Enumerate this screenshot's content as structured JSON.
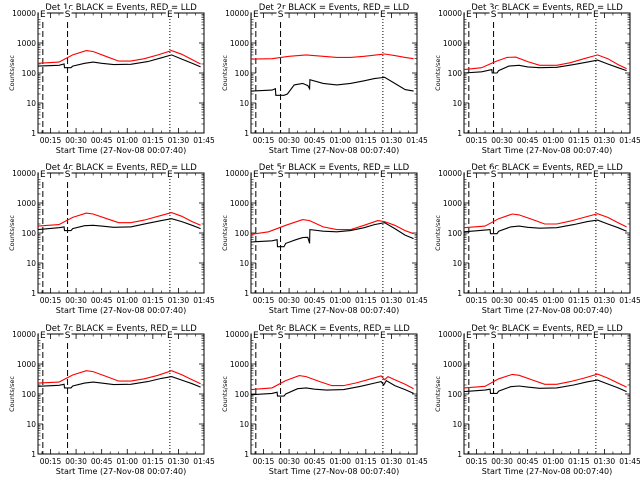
{
  "chart_data": {
    "type": "line",
    "layout": "3x3 grid",
    "panel_title_suffix": " BLACK = Events, RED = LLD",
    "ylabel": "Counts/sec",
    "xlabel": "Start Time (27-Nov-08 00:07:40)",
    "x_unit": "minutes since 00:00",
    "xlim": [
      7.67,
      105
    ],
    "ylim": [
      1,
      10000
    ],
    "yscale": "log",
    "y_tick_labels": [
      "1",
      "10",
      "100",
      "1000",
      "10000"
    ],
    "y_tick_values": [
      1,
      10,
      100,
      1000,
      10000
    ],
    "x_tick_labels": [
      "00:15",
      "00:30",
      "00:45",
      "01:00",
      "01:15",
      "01:30",
      "01:45"
    ],
    "x_tick_values": [
      15,
      30,
      45,
      60,
      75,
      90,
      105
    ],
    "markers": [
      {
        "label": "E",
        "x": 10.5,
        "style": "dashed"
      },
      {
        "label": "S",
        "x": 25.0,
        "style": "dashed"
      },
      {
        "label": "E",
        "x": 85.0,
        "style": "dotted"
      }
    ],
    "series_colors": {
      "events": "#000000",
      "lld": "#ff0000"
    },
    "panels": [
      {
        "detector": "Det 1c",
        "events": [
          [
            7.7,
            170
          ],
          [
            20,
            180
          ],
          [
            23,
            200
          ],
          [
            23.2,
            150
          ],
          [
            27,
            150
          ],
          [
            28,
            170
          ],
          [
            35,
            210
          ],
          [
            40,
            230
          ],
          [
            45,
            210
          ],
          [
            52,
            190
          ],
          [
            62,
            195
          ],
          [
            72,
            240
          ],
          [
            80,
            320
          ],
          [
            86,
            400
          ],
          [
            92,
            290
          ],
          [
            98,
            210
          ],
          [
            103,
            160
          ]
        ],
        "lld": [
          [
            7.7,
            210
          ],
          [
            20,
            230
          ],
          [
            28,
            400
          ],
          [
            36,
            560
          ],
          [
            40,
            520
          ],
          [
            48,
            350
          ],
          [
            55,
            250
          ],
          [
            62,
            250
          ],
          [
            70,
            300
          ],
          [
            78,
            400
          ],
          [
            86,
            560
          ],
          [
            92,
            420
          ],
          [
            98,
            280
          ],
          [
            103,
            200
          ]
        ]
      },
      {
        "detector": "Det 2r",
        "events": [
          [
            7.7,
            25
          ],
          [
            20,
            27
          ],
          [
            22,
            30
          ],
          [
            22.2,
            18
          ],
          [
            27,
            18
          ],
          [
            29,
            20
          ],
          [
            33,
            40
          ],
          [
            38,
            45
          ],
          [
            41,
            38
          ],
          [
            42,
            30
          ],
          [
            42.2,
            60
          ],
          [
            50,
            45
          ],
          [
            58,
            40
          ],
          [
            66,
            45
          ],
          [
            74,
            55
          ],
          [
            80,
            65
          ],
          [
            86,
            72
          ],
          [
            92,
            45
          ],
          [
            98,
            28
          ],
          [
            103,
            25
          ]
        ],
        "lld": [
          [
            7.7,
            290
          ],
          [
            20,
            300
          ],
          [
            30,
            360
          ],
          [
            40,
            400
          ],
          [
            50,
            360
          ],
          [
            58,
            330
          ],
          [
            66,
            330
          ],
          [
            74,
            360
          ],
          [
            86,
            430
          ],
          [
            92,
            380
          ],
          [
            98,
            330
          ],
          [
            103,
            300
          ]
        ]
      },
      {
        "detector": "Det 3c",
        "events": [
          [
            7.7,
            100
          ],
          [
            18,
            110
          ],
          [
            24,
            130
          ],
          [
            24.2,
            100
          ],
          [
            27,
            100
          ],
          [
            28,
            120
          ],
          [
            34,
            170
          ],
          [
            40,
            180
          ],
          [
            45,
            160
          ],
          [
            52,
            150
          ],
          [
            62,
            155
          ],
          [
            72,
            190
          ],
          [
            80,
            230
          ],
          [
            86,
            270
          ],
          [
            92,
            200
          ],
          [
            98,
            150
          ],
          [
            103,
            120
          ]
        ],
        "lld": [
          [
            7.7,
            130
          ],
          [
            18,
            150
          ],
          [
            26,
            240
          ],
          [
            33,
            330
          ],
          [
            38,
            340
          ],
          [
            45,
            240
          ],
          [
            52,
            180
          ],
          [
            62,
            180
          ],
          [
            70,
            220
          ],
          [
            78,
            300
          ],
          [
            86,
            400
          ],
          [
            92,
            300
          ],
          [
            98,
            190
          ],
          [
            103,
            140
          ]
        ]
      },
      {
        "detector": "Det 4c",
        "events": [
          [
            7.7,
            130
          ],
          [
            20,
            150
          ],
          [
            23,
            160
          ],
          [
            23.2,
            120
          ],
          [
            27,
            120
          ],
          [
            28,
            140
          ],
          [
            35,
            175
          ],
          [
            40,
            180
          ],
          [
            45,
            170
          ],
          [
            52,
            155
          ],
          [
            62,
            160
          ],
          [
            72,
            210
          ],
          [
            80,
            260
          ],
          [
            86,
            300
          ],
          [
            92,
            240
          ],
          [
            98,
            180
          ],
          [
            103,
            140
          ]
        ],
        "lld": [
          [
            7.7,
            170
          ],
          [
            20,
            190
          ],
          [
            28,
            330
          ],
          [
            36,
            460
          ],
          [
            40,
            430
          ],
          [
            48,
            300
          ],
          [
            55,
            220
          ],
          [
            62,
            220
          ],
          [
            70,
            270
          ],
          [
            78,
            360
          ],
          [
            86,
            480
          ],
          [
            92,
            360
          ],
          [
            98,
            240
          ],
          [
            103,
            180
          ]
        ]
      },
      {
        "detector": "Det 5r",
        "events": [
          [
            7.7,
            50
          ],
          [
            20,
            55
          ],
          [
            23,
            60
          ],
          [
            23.2,
            35
          ],
          [
            27,
            35
          ],
          [
            28,
            45
          ],
          [
            34,
            60
          ],
          [
            38,
            70
          ],
          [
            41,
            72
          ],
          [
            42,
            45
          ],
          [
            42.2,
            130
          ],
          [
            50,
            115
          ],
          [
            58,
            110
          ],
          [
            66,
            120
          ],
          [
            74,
            150
          ],
          [
            80,
            190
          ],
          [
            86,
            220
          ],
          [
            92,
            140
          ],
          [
            98,
            85
          ],
          [
            103,
            65
          ]
        ],
        "lld": [
          [
            7.7,
            90
          ],
          [
            18,
            110
          ],
          [
            28,
            180
          ],
          [
            38,
            280
          ],
          [
            42,
            260
          ],
          [
            50,
            160
          ],
          [
            58,
            130
          ],
          [
            66,
            130
          ],
          [
            74,
            180
          ],
          [
            82,
            260
          ],
          [
            86,
            240
          ],
          [
            92,
            180
          ],
          [
            98,
            120
          ],
          [
            103,
            95
          ]
        ]
      },
      {
        "detector": "Det 6c",
        "events": [
          [
            7.7,
            110
          ],
          [
            20,
            125
          ],
          [
            23,
            130
          ],
          [
            23.2,
            95
          ],
          [
            27,
            95
          ],
          [
            28,
            115
          ],
          [
            35,
            160
          ],
          [
            40,
            170
          ],
          [
            45,
            155
          ],
          [
            52,
            145
          ],
          [
            62,
            150
          ],
          [
            72,
            190
          ],
          [
            80,
            240
          ],
          [
            86,
            270
          ],
          [
            92,
            200
          ],
          [
            98,
            150
          ],
          [
            103,
            115
          ]
        ],
        "lld": [
          [
            7.7,
            150
          ],
          [
            20,
            170
          ],
          [
            28,
            300
          ],
          [
            36,
            430
          ],
          [
            40,
            400
          ],
          [
            48,
            280
          ],
          [
            55,
            200
          ],
          [
            62,
            200
          ],
          [
            70,
            250
          ],
          [
            78,
            330
          ],
          [
            86,
            440
          ],
          [
            92,
            330
          ],
          [
            98,
            220
          ],
          [
            103,
            160
          ]
        ]
      },
      {
        "detector": "Det 7c",
        "events": [
          [
            7.7,
            180
          ],
          [
            20,
            195
          ],
          [
            23,
            210
          ],
          [
            23.2,
            160
          ],
          [
            27,
            160
          ],
          [
            28,
            185
          ],
          [
            35,
            230
          ],
          [
            40,
            250
          ],
          [
            45,
            230
          ],
          [
            52,
            205
          ],
          [
            62,
            210
          ],
          [
            72,
            260
          ],
          [
            80,
            330
          ],
          [
            86,
            380
          ],
          [
            92,
            290
          ],
          [
            98,
            220
          ],
          [
            103,
            170
          ]
        ],
        "lld": [
          [
            7.7,
            230
          ],
          [
            20,
            250
          ],
          [
            28,
            430
          ],
          [
            36,
            600
          ],
          [
            40,
            560
          ],
          [
            48,
            380
          ],
          [
            55,
            270
          ],
          [
            62,
            270
          ],
          [
            70,
            320
          ],
          [
            78,
            420
          ],
          [
            86,
            600
          ],
          [
            92,
            440
          ],
          [
            98,
            300
          ],
          [
            103,
            220
          ]
        ]
      },
      {
        "detector": "Det 8c",
        "events": [
          [
            7.7,
            95
          ],
          [
            20,
            105
          ],
          [
            23,
            115
          ],
          [
            23.2,
            85
          ],
          [
            27,
            85
          ],
          [
            28,
            100
          ],
          [
            35,
            150
          ],
          [
            40,
            160
          ],
          [
            45,
            145
          ],
          [
            52,
            135
          ],
          [
            62,
            140
          ],
          [
            72,
            180
          ],
          [
            80,
            230
          ],
          [
            84,
            260
          ],
          [
            85.5,
            200
          ],
          [
            87,
            280
          ],
          [
            92,
            190
          ],
          [
            98,
            140
          ],
          [
            103,
            105
          ]
        ],
        "lld": [
          [
            7.7,
            140
          ],
          [
            20,
            160
          ],
          [
            28,
            280
          ],
          [
            36,
            410
          ],
          [
            40,
            380
          ],
          [
            48,
            260
          ],
          [
            55,
            190
          ],
          [
            62,
            190
          ],
          [
            70,
            240
          ],
          [
            78,
            320
          ],
          [
            84,
            400
          ],
          [
            86,
            300
          ],
          [
            88,
            380
          ],
          [
            92,
            300
          ],
          [
            98,
            210
          ],
          [
            103,
            150
          ]
        ]
      },
      {
        "detector": "Det 9c",
        "events": [
          [
            7.7,
            120
          ],
          [
            20,
            135
          ],
          [
            23,
            145
          ],
          [
            23.2,
            105
          ],
          [
            27,
            105
          ],
          [
            28,
            125
          ],
          [
            35,
            175
          ],
          [
            40,
            185
          ],
          [
            45,
            170
          ],
          [
            52,
            155
          ],
          [
            62,
            160
          ],
          [
            72,
            200
          ],
          [
            80,
            255
          ],
          [
            86,
            290
          ],
          [
            92,
            215
          ],
          [
            98,
            160
          ],
          [
            103,
            120
          ]
        ],
        "lld": [
          [
            7.7,
            160
          ],
          [
            20,
            180
          ],
          [
            28,
            320
          ],
          [
            36,
            450
          ],
          [
            40,
            420
          ],
          [
            48,
            290
          ],
          [
            55,
            210
          ],
          [
            62,
            210
          ],
          [
            70,
            260
          ],
          [
            78,
            340
          ],
          [
            86,
            460
          ],
          [
            92,
            340
          ],
          [
            98,
            230
          ],
          [
            103,
            170
          ]
        ]
      }
    ]
  }
}
